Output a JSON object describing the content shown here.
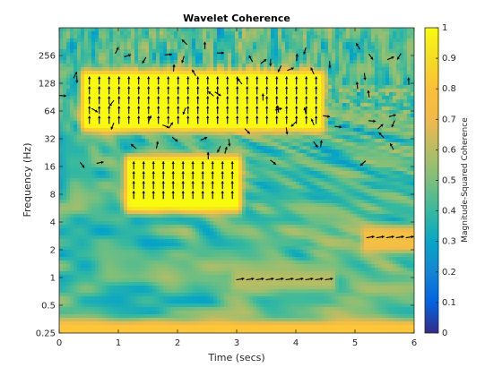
{
  "chart_data": {
    "type": "heatmap",
    "title": "Wavelet Coherence",
    "xlabel": "Time (secs)",
    "ylabel": "Frequency (Hz)",
    "colorbar_label": "Magnitude-Squared Coherence",
    "x_ticks": [
      "0",
      "1",
      "2",
      "3",
      "4",
      "5",
      "6"
    ],
    "y_ticks": [
      "0.25",
      "0.5",
      "1",
      "2",
      "4",
      "8",
      "16",
      "32",
      "64",
      "128",
      "256"
    ],
    "colorbar_ticks": [
      "0",
      "0.1",
      "0.2",
      "0.3",
      "0.4",
      "0.5",
      "0.6",
      "0.7",
      "0.8",
      "0.9",
      "1"
    ],
    "xlim": [
      0,
      6
    ],
    "ylim": [
      0.25,
      512
    ],
    "y_scale": "log2",
    "clim": [
      0,
      1
    ],
    "colormap": "parula",
    "high_coherence_regions": [
      {
        "t_start": 0.45,
        "t_end": 4.4,
        "f_low": 45,
        "f_high": 150,
        "coherence": 1.0,
        "phase_arrows": "up"
      },
      {
        "t_start": 1.2,
        "t_end": 3.0,
        "f_low": 6,
        "f_high": 18,
        "coherence": 1.0,
        "phase_arrows": "up"
      },
      {
        "t_start": 5.2,
        "t_end": 6.0,
        "f_low": 2.2,
        "f_high": 3.0,
        "coherence": 0.75,
        "phase_arrows": "right"
      },
      {
        "t_start": 3.0,
        "t_end": 4.6,
        "f_low": 0.85,
        "f_high": 1.05,
        "coherence": 0.6,
        "phase_arrows": "right"
      },
      {
        "t_start": 0.0,
        "t_end": 6.0,
        "f_low": 0.25,
        "f_high": 0.29,
        "coherence": 0.8,
        "phase_arrows": "right"
      }
    ]
  }
}
